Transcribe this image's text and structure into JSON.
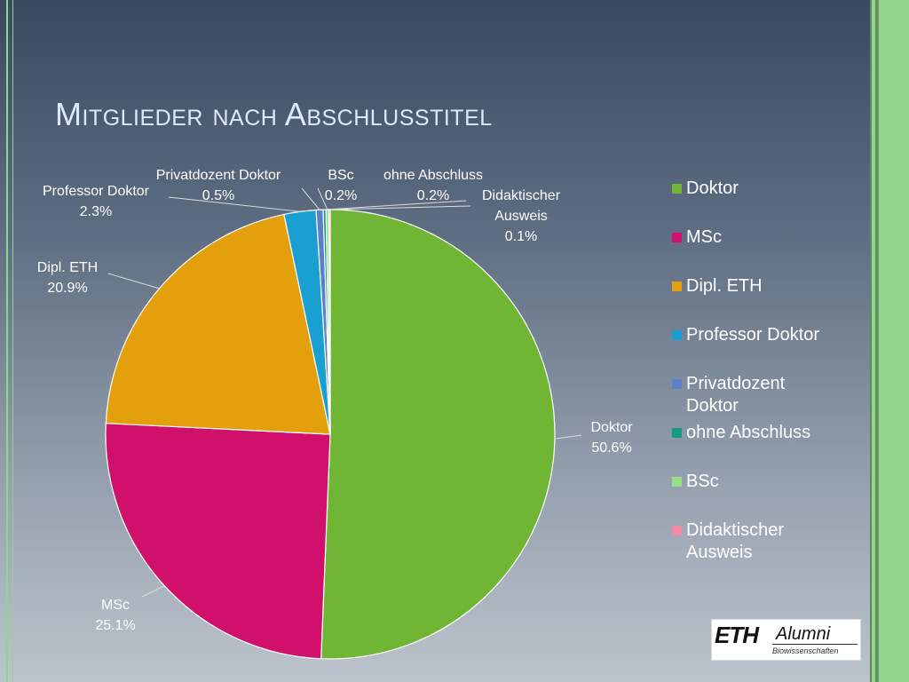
{
  "slide": {
    "title": "Mitglieder nach Abschlusstitel"
  },
  "chart_data": {
    "type": "pie",
    "title": "",
    "categories": [
      "Doktor",
      "MSc",
      "Dipl. ETH",
      "Professor Doktor",
      "Privatdozent Doktor",
      "ohne Abschluss",
      "BSc",
      "Didaktischer Ausweis"
    ],
    "values": [
      50.6,
      25.1,
      20.9,
      2.3,
      0.5,
      0.2,
      0.2,
      0.1
    ],
    "data_labels": [
      "50.6%",
      "25.1%",
      "20.9%",
      "2.3%",
      "0.5%",
      "0.2%",
      "0.2%",
      "0.1%"
    ],
    "colors": [
      "#70b634",
      "#d0106a",
      "#e39f0c",
      "#1aa0d0",
      "#5b7fc9",
      "#169a86",
      "#98e088",
      "#f08aa6"
    ],
    "label_lines": [
      [
        "Doktor"
      ],
      [
        "MSc"
      ],
      [
        "Dipl. ETH"
      ],
      [
        "Professor Doktor"
      ],
      [
        "Privatdozent Doktor"
      ],
      [
        "ohne Abschluss"
      ],
      [
        "BSc"
      ],
      [
        "Didaktischer",
        "Ausweis"
      ]
    ],
    "legend_lines": [
      [
        "Doktor"
      ],
      [
        "MSc"
      ],
      [
        "Dipl. ETH"
      ],
      [
        "Professor Doktor"
      ],
      [
        "Privatdozent",
        "Doktor"
      ],
      [
        "ohne Abschluss"
      ],
      [
        "BSc"
      ],
      [
        "Didaktischer",
        "Ausweis"
      ]
    ],
    "legend_position": "right",
    "start_angle_deg": 0,
    "direction": "clockwise"
  },
  "logo": {
    "main": "ETH",
    "sub": "Alumni",
    "small": "Biowissenschaften"
  }
}
